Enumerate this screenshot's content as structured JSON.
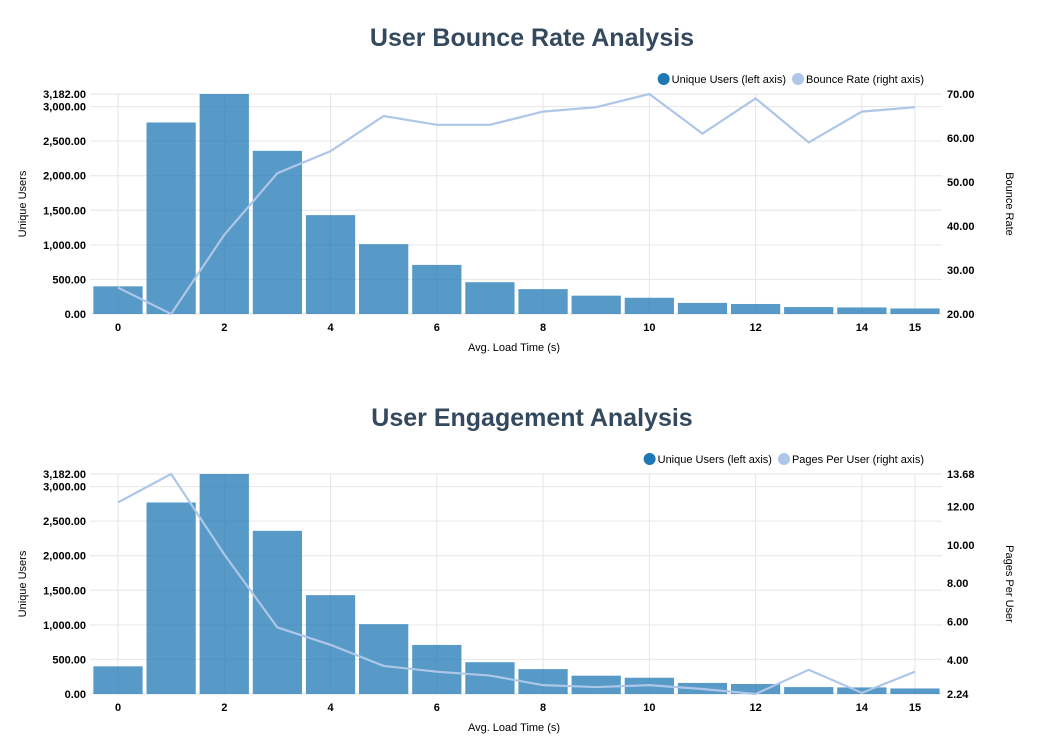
{
  "chart_data": [
    {
      "type": "bar",
      "title": "User Bounce Rate Analysis",
      "xlabel": "Avg. Load Time (s)",
      "ylabel": "Unique Users",
      "y2label": "Bounce Rate",
      "x": [
        0,
        1,
        2,
        3,
        4,
        5,
        6,
        7,
        8,
        9,
        10,
        11,
        12,
        13,
        14,
        15
      ],
      "x_ticks": [
        "0",
        "2",
        "4",
        "6",
        "8",
        "10",
        "12",
        "14",
        "15"
      ],
      "y_ticks": [
        "0.00",
        "500.00",
        "1,000.00",
        "1,500.00",
        "2,000.00",
        "2,500.00",
        "3,000.00",
        "3,182.00"
      ],
      "y2_ticks": [
        "20.00",
        "30.00",
        "40.00",
        "50.00",
        "60.00",
        "70.00"
      ],
      "ylim": [
        0,
        3182
      ],
      "y2lim": [
        20,
        70
      ],
      "grid": true,
      "legend_position": "top-right",
      "series": [
        {
          "name": "Unique Users (left axis)",
          "type": "bar",
          "axis": "left",
          "color": "#1f77b4",
          "values": [
            400,
            2770,
            3182,
            2360,
            1430,
            1010,
            710,
            460,
            360,
            265,
            235,
            160,
            145,
            100,
            95,
            80
          ]
        },
        {
          "name": "Bounce Rate (right axis)",
          "type": "line",
          "axis": "right",
          "color": "#aec7e8",
          "values": [
            26,
            20,
            38,
            52,
            57,
            65,
            63,
            63,
            66,
            67,
            70,
            61,
            69,
            59,
            66,
            67
          ]
        }
      ]
    },
    {
      "type": "bar",
      "title": "User Engagement Analysis",
      "xlabel": "Avg. Load Time (s)",
      "ylabel": "Unique Users",
      "y2label": "Pages Per User",
      "x": [
        0,
        1,
        2,
        3,
        4,
        5,
        6,
        7,
        8,
        9,
        10,
        11,
        12,
        13,
        14,
        15
      ],
      "x_ticks": [
        "0",
        "2",
        "4",
        "6",
        "8",
        "10",
        "12",
        "14",
        "15"
      ],
      "y_ticks": [
        "0.00",
        "500.00",
        "1,000.00",
        "1,500.00",
        "2,000.00",
        "2,500.00",
        "3,000.00",
        "3,182.00"
      ],
      "y2_ticks": [
        "2.24",
        "4.00",
        "6.00",
        "8.00",
        "10.00",
        "12.00",
        "13.68"
      ],
      "ylim": [
        0,
        3182
      ],
      "y2lim": [
        2.24,
        13.68
      ],
      "grid": true,
      "legend_position": "top-right",
      "series": [
        {
          "name": "Unique Users (left axis)",
          "type": "bar",
          "axis": "left",
          "color": "#1f77b4",
          "values": [
            400,
            2770,
            3182,
            2360,
            1430,
            1010,
            710,
            460,
            360,
            265,
            235,
            160,
            145,
            100,
            95,
            80
          ]
        },
        {
          "name": "Pages Per User (right axis)",
          "type": "line",
          "axis": "right",
          "color": "#aec7e8",
          "values": [
            12.2,
            13.68,
            9.5,
            5.7,
            4.8,
            3.7,
            3.4,
            3.2,
            2.7,
            2.6,
            2.7,
            2.5,
            2.24,
            3.5,
            2.3,
            3.4
          ]
        }
      ]
    }
  ]
}
